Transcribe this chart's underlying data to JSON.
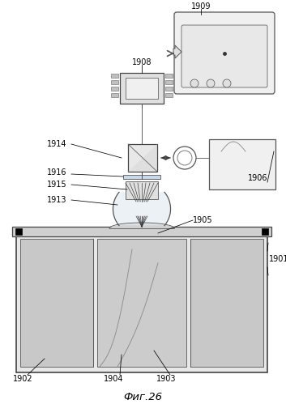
{
  "title": "Фиг.26",
  "bg_color": "#ffffff",
  "fg_color": "#333333",
  "light_gray": "#d8d8d8",
  "mid_gray": "#bbbbbb",
  "dark_gray": "#555555",
  "font_size": 7.0
}
